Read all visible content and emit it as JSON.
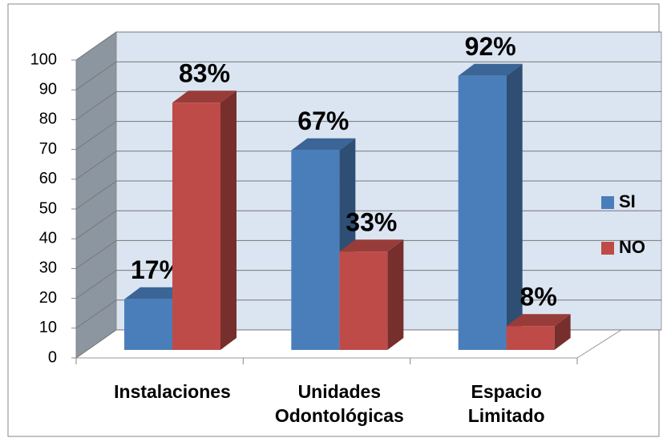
{
  "chart_data": {
    "type": "bar3d",
    "categories": [
      "Instalaciones",
      "Unidades Odontológicas",
      "Espacio Limitado"
    ],
    "series": [
      {
        "name": "SI",
        "color": "#4a7ebb",
        "values": [
          17,
          67,
          92
        ],
        "value_labels": [
          "17%",
          "67%",
          "92%"
        ]
      },
      {
        "name": "NO",
        "color": "#be4b48",
        "values": [
          83,
          33,
          8
        ],
        "value_labels": [
          "83%",
          "33%",
          "8%"
        ]
      }
    ],
    "ylim": [
      0,
      100
    ],
    "yticks": [
      0,
      10,
      20,
      30,
      40,
      50,
      60,
      70,
      80,
      90,
      100
    ],
    "grid": true,
    "legend": "right"
  }
}
